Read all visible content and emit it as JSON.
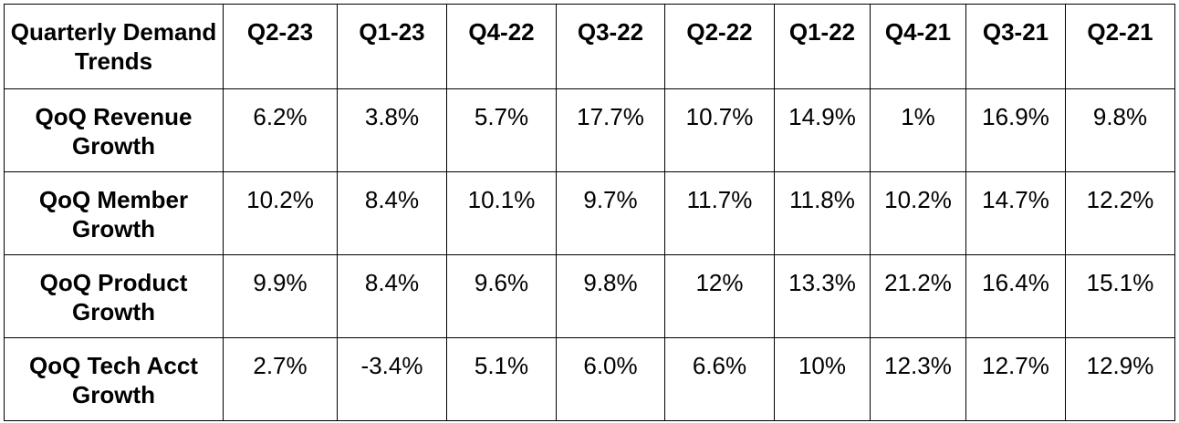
{
  "table": {
    "corner_label": "Quarterly Demand Trends",
    "columns": [
      "Q2-23",
      "Q1-23",
      "Q4-22",
      "Q3-22",
      "Q2-22",
      "Q1-22",
      "Q4-21",
      "Q3-21",
      "Q2-21"
    ],
    "rows": [
      {
        "label": "QoQ Revenue Growth",
        "values": [
          "6.2%",
          "3.8%",
          "5.7%",
          "17.7%",
          "10.7%",
          "14.9%",
          "1%",
          "16.9%",
          "9.8%"
        ]
      },
      {
        "label": "QoQ Member Growth",
        "values": [
          "10.2%",
          "8.4%",
          "10.1%",
          "9.7%",
          "11.7%",
          "11.8%",
          "10.2%",
          "14.7%",
          "12.2%"
        ]
      },
      {
        "label": "QoQ Product Growth",
        "values": [
          "9.9%",
          "8.4%",
          "9.6%",
          "9.8%",
          "12%",
          "13.3%",
          "21.2%",
          "16.4%",
          "15.1%"
        ]
      },
      {
        "label": "QoQ Tech Acct Growth",
        "values": [
          "2.7%",
          "-3.4%",
          "5.1%",
          "6.0%",
          "6.6%",
          "10%",
          "12.3%",
          "12.7%",
          "12.9%"
        ]
      }
    ]
  }
}
